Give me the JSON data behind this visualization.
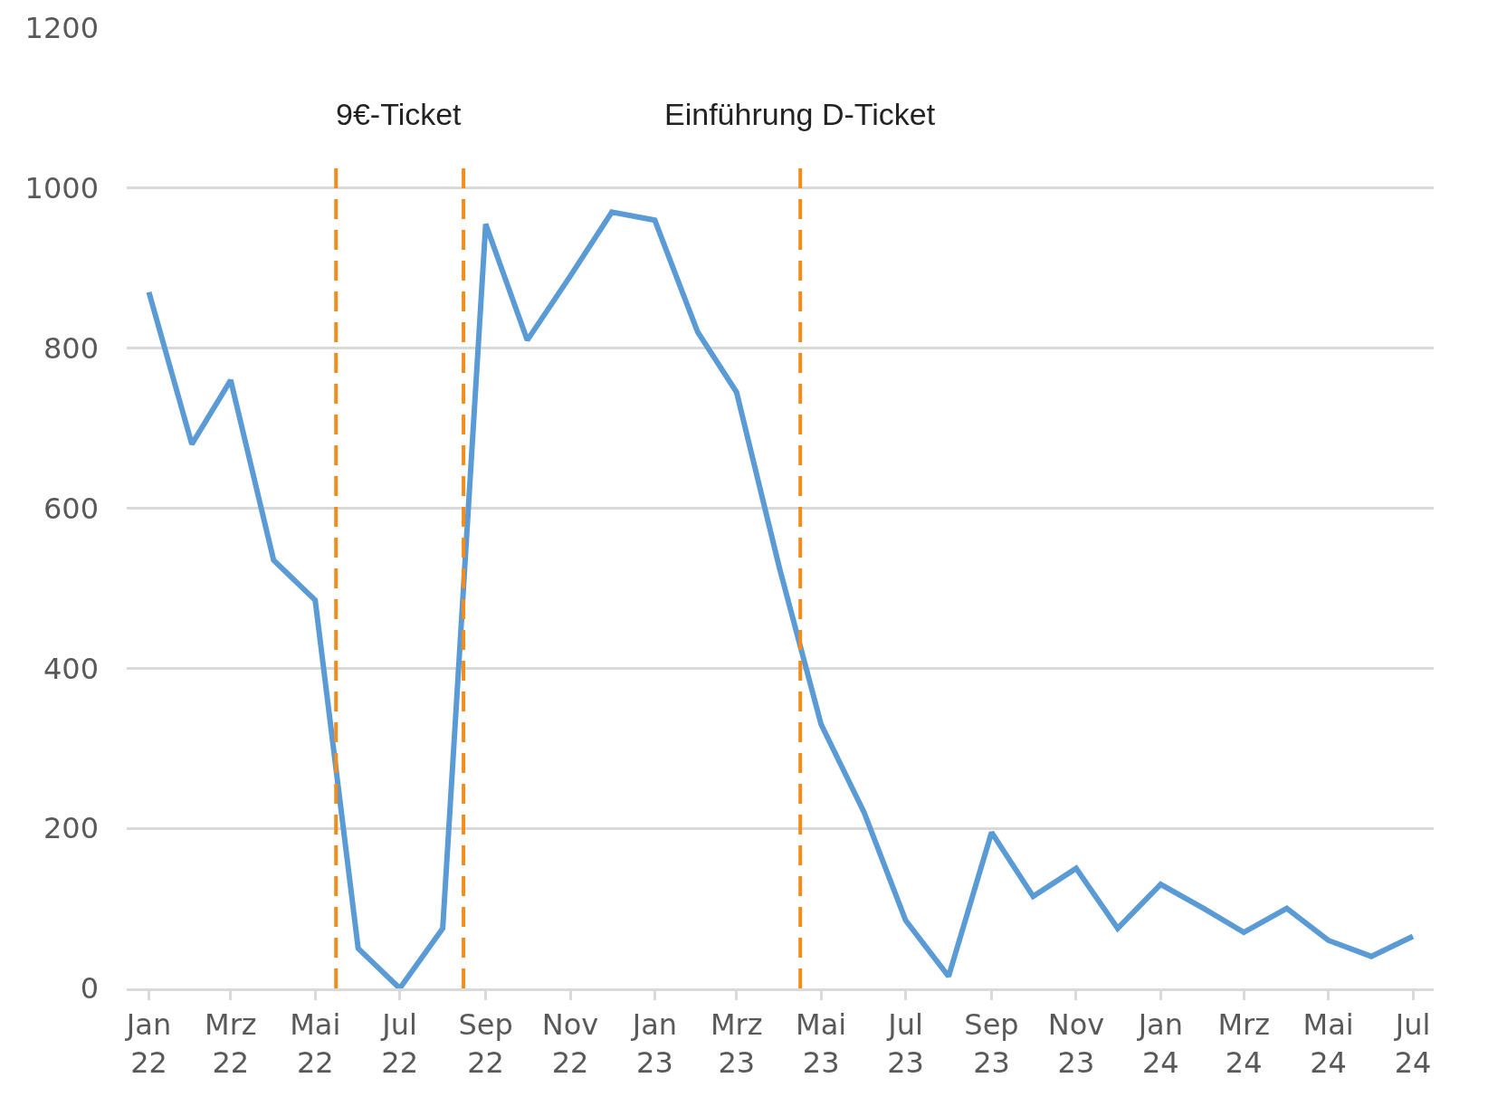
{
  "chart_data": {
    "type": "line",
    "x": [
      "2022-01",
      "2022-02",
      "2022-03",
      "2022-04",
      "2022-05",
      "2022-06",
      "2022-07",
      "2022-08",
      "2022-09",
      "2022-10",
      "2022-11",
      "2022-12",
      "2023-01",
      "2023-02",
      "2023-03",
      "2023-04",
      "2023-05",
      "2023-06",
      "2023-07",
      "2023-08",
      "2023-09",
      "2023-10",
      "2023-11",
      "2023-12",
      "2024-01",
      "2024-02",
      "2024-03",
      "2024-04",
      "2024-05",
      "2024-06",
      "2024-07"
    ],
    "series": [
      {
        "color": "#5b9bd5",
        "values": [
          870,
          680,
          760,
          535,
          485,
          50,
          0,
          75,
          955,
          810,
          890,
          970,
          960,
          820,
          745,
          525,
          330,
          220,
          85,
          15,
          195,
          115,
          150,
          75,
          130,
          100,
          70,
          100,
          60,
          40,
          65
        ]
      }
    ],
    "xlim": [
      "2021-12-16",
      "2024-07-16"
    ],
    "xticks": [
      {
        "value": "2022-01",
        "label": "Jan 22"
      },
      {
        "value": "2022-03",
        "label": "Mrz 22"
      },
      {
        "value": "2022-05",
        "label": "Mai 22"
      },
      {
        "value": "2022-07",
        "label": "Jul 22"
      },
      {
        "value": "2022-09",
        "label": "Sep 22"
      },
      {
        "value": "2022-11",
        "label": "Nov 22"
      },
      {
        "value": "2023-01",
        "label": "Jan 23"
      },
      {
        "value": "2023-03",
        "label": "Mrz 23"
      },
      {
        "value": "2023-05",
        "label": "Mai 23"
      },
      {
        "value": "2023-07",
        "label": "Jul 23"
      },
      {
        "value": "2023-09",
        "label": "Sep 23"
      },
      {
        "value": "2023-11",
        "label": "Nov 23"
      },
      {
        "value": "2024-01",
        "label": "Jan 24"
      },
      {
        "value": "2024-03",
        "label": "Mrz 24"
      },
      {
        "value": "2024-05",
        "label": "Mai 24"
      },
      {
        "value": "2024-07",
        "label": "Jul 24"
      }
    ],
    "ylim": [
      0,
      1200
    ],
    "yticks": [
      0,
      200,
      400,
      600,
      800,
      1000,
      1200
    ],
    "grid": "y",
    "marker": "none",
    "line_style": "solid",
    "ref_lines": [
      {
        "axis": "x",
        "value": "2022-05-16",
        "color": "#f28c1c",
        "line_style": "dashed"
      },
      {
        "axis": "x",
        "value": "2022-08-16",
        "color": "#f28c1c",
        "line_style": "dashed"
      },
      {
        "axis": "x",
        "value": "2023-04-16",
        "color": "#f28c1c",
        "line_style": "dashed",
        "label": "Einführung D-Ticket"
      }
    ],
    "annotations": [
      "9€-Ticket"
    ]
  }
}
